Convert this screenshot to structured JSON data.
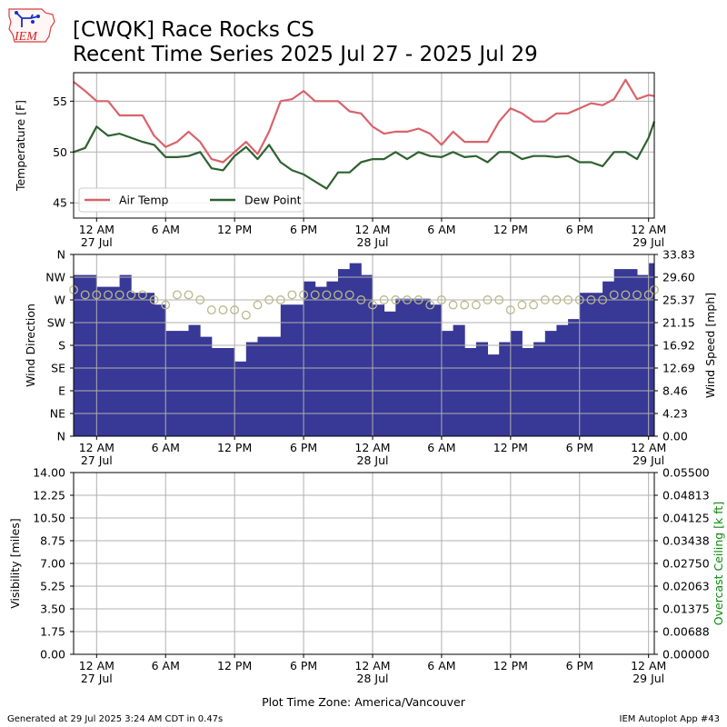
{
  "header": {
    "logo_text": "IEM",
    "title_line1": "[CWQK] Race Rocks CS",
    "title_line2": "Recent Time Series 2025 Jul 27 - 2025 Jul 29"
  },
  "footer": {
    "generated": "Generated at 29 Jul 2025 3:24 AM CDT in 0.47s",
    "timezone": "Plot Time Zone: America/Vancouver",
    "app": "IEM Autoplot App #43"
  },
  "colors": {
    "air_temp": "#d9626a",
    "dew_point": "#2e6130",
    "wind_speed": "#383896",
    "wind_dir": "#b8b98a",
    "ceiling_label": "#0a8a0a",
    "grid": "#b0b0b0"
  },
  "chart_data": [
    {
      "type": "line",
      "ylabel": "Temperature [F]",
      "ylim": [
        43.5,
        57.8
      ],
      "xlim": [
        0,
        50.5
      ],
      "yticks": [
        45,
        50,
        55
      ],
      "grid": true,
      "legend_placement": "lower-left",
      "x_ticks": [
        {
          "x": 2,
          "line1": "12 AM",
          "line2": "27 Jul"
        },
        {
          "x": 8,
          "line1": "6 AM",
          "line2": ""
        },
        {
          "x": 14,
          "line1": "12 PM",
          "line2": ""
        },
        {
          "x": 20,
          "line1": "6 PM",
          "line2": ""
        },
        {
          "x": 26,
          "line1": "12 AM",
          "line2": "28 Jul"
        },
        {
          "x": 32,
          "line1": "6 AM",
          "line2": ""
        },
        {
          "x": 38,
          "line1": "12 PM",
          "line2": ""
        },
        {
          "x": 44,
          "line1": "6 PM",
          "line2": ""
        },
        {
          "x": 50,
          "line1": "12 AM",
          "line2": "29 Jul"
        }
      ],
      "series": [
        {
          "name": "Air Temp",
          "key": "air_temp",
          "x": [
            0,
            1,
            2,
            3,
            4,
            5,
            6,
            7,
            8,
            9,
            10,
            11,
            12,
            13,
            14,
            15,
            16,
            17,
            18,
            19,
            20,
            21,
            22,
            23,
            24,
            25,
            26,
            27,
            28,
            29,
            30,
            31,
            32,
            33,
            34,
            35,
            36,
            37,
            38,
            39,
            40,
            41,
            42,
            43,
            44,
            45,
            46,
            47,
            48,
            49,
            50,
            50.5
          ],
          "values": [
            56.9,
            56.0,
            55.0,
            55.0,
            53.6,
            53.6,
            53.6,
            51.6,
            50.5,
            51.0,
            52.0,
            51.0,
            49.3,
            49.0,
            50.0,
            51.0,
            49.8,
            52.0,
            55.0,
            55.2,
            56.0,
            55.0,
            55.0,
            55.0,
            54.0,
            53.8,
            52.5,
            51.8,
            52.0,
            52.0,
            52.3,
            51.8,
            50.7,
            52.0,
            51.0,
            51.0,
            51.0,
            53.0,
            54.3,
            53.8,
            53.0,
            53.0,
            53.8,
            53.8,
            54.3,
            54.8,
            54.6,
            55.2,
            57.1,
            55.2,
            55.6,
            55.5
          ]
        },
        {
          "name": "Dew Point",
          "key": "dew_point",
          "x": [
            0,
            1,
            2,
            3,
            4,
            5,
            6,
            7,
            8,
            9,
            10,
            11,
            12,
            13,
            14,
            15,
            16,
            17,
            18,
            19,
            20,
            21,
            22,
            23,
            24,
            25,
            26,
            27,
            28,
            29,
            30,
            31,
            32,
            33,
            34,
            35,
            36,
            37,
            38,
            39,
            40,
            41,
            42,
            43,
            44,
            45,
            46,
            47,
            48,
            49,
            50,
            50.5
          ],
          "values": [
            50.0,
            50.4,
            52.5,
            51.6,
            51.8,
            51.4,
            51.0,
            50.7,
            49.5,
            49.5,
            49.6,
            50.0,
            48.4,
            48.2,
            49.6,
            50.5,
            49.3,
            50.7,
            49.0,
            48.2,
            47.8,
            47.1,
            46.4,
            48.0,
            48.0,
            49.0,
            49.3,
            49.3,
            50.0,
            49.3,
            50.0,
            49.6,
            49.5,
            50.0,
            49.5,
            49.6,
            49.0,
            50.0,
            50.0,
            49.3,
            49.6,
            49.6,
            49.5,
            49.6,
            49.0,
            49.0,
            48.6,
            50.0,
            50.0,
            49.3,
            51.4,
            53.0
          ]
        }
      ]
    },
    {
      "type": "bar",
      "ylabel": "Wind Direction",
      "y2label": "Wind Speed [mph]",
      "dir_ticks": [
        "N",
        "NE",
        "E",
        "SE",
        "S",
        "SW",
        "W",
        "NW",
        "N"
      ],
      "dir_ylim": [
        0,
        360
      ],
      "speed_ticks": [
        "0.00",
        "4.23",
        "8.46",
        "12.69",
        "16.92",
        "21.15",
        "25.37",
        "29.60",
        "33.83"
      ],
      "speed_ylim": [
        0,
        33.83
      ],
      "xlim": [
        0,
        50.5
      ],
      "grid": true,
      "series": [
        {
          "name": "Wind Speed",
          "key": "wind_speed",
          "x": [
            0,
            1,
            2,
            3,
            4,
            5,
            6,
            7,
            8,
            9,
            10,
            11,
            12,
            13,
            14,
            15,
            16,
            17,
            18,
            19,
            20,
            21,
            22,
            23,
            24,
            25,
            26,
            27,
            28,
            29,
            30,
            31,
            32,
            33,
            34,
            35,
            36,
            37,
            38,
            39,
            40,
            41,
            42,
            43,
            44,
            45,
            46,
            47,
            48,
            49,
            50,
            50.5
          ],
          "values": [
            30.0,
            30.0,
            27.8,
            27.8,
            30.0,
            26.7,
            26.7,
            24.5,
            19.6,
            19.6,
            20.7,
            18.5,
            16.4,
            16.4,
            13.9,
            17.5,
            18.5,
            18.5,
            24.5,
            24.5,
            28.8,
            27.8,
            28.8,
            31.1,
            32.2,
            30.0,
            24.5,
            23.2,
            25.6,
            25.6,
            25.6,
            24.5,
            19.6,
            20.7,
            16.4,
            17.5,
            15.2,
            17.5,
            19.6,
            16.4,
            17.5,
            19.6,
            20.7,
            21.8,
            26.7,
            26.7,
            28.8,
            31.1,
            31.1,
            30.0,
            32.2,
            30.0
          ]
        },
        {
          "name": "Wind Direction",
          "key": "wind_dir",
          "x": [
            0,
            1,
            2,
            3,
            4,
            5,
            6,
            7,
            8,
            9,
            10,
            11,
            12,
            13,
            14,
            15,
            16,
            17,
            18,
            19,
            20,
            21,
            22,
            23,
            24,
            25,
            26,
            27,
            28,
            29,
            30,
            31,
            32,
            33,
            34,
            35,
            36,
            37,
            38,
            39,
            40,
            41,
            42,
            43,
            44,
            45,
            46,
            47,
            48,
            49,
            50,
            50.5
          ],
          "values": [
            290,
            280,
            280,
            280,
            280,
            280,
            280,
            270,
            260,
            280,
            280,
            270,
            250,
            250,
            250,
            240,
            260,
            270,
            270,
            280,
            280,
            280,
            280,
            280,
            280,
            270,
            260,
            270,
            270,
            270,
            270,
            260,
            270,
            260,
            260,
            260,
            270,
            270,
            250,
            260,
            260,
            270,
            270,
            270,
            270,
            270,
            270,
            280,
            280,
            280,
            280,
            290
          ]
        }
      ]
    },
    {
      "type": "line",
      "ylabel": "Visibility [miles]",
      "y2label": "Overcast Ceiling [k ft]",
      "vis_ticks": [
        "0.00",
        "1.75",
        "3.50",
        "5.25",
        "7.00",
        "8.75",
        "10.50",
        "12.25",
        "14.00"
      ],
      "vis_ylim": [
        0,
        14
      ],
      "ceiling_ticks": [
        "0.00000",
        "0.00688",
        "0.01375",
        "0.02063",
        "0.02750",
        "0.03438",
        "0.04125",
        "0.04813",
        "0.05500"
      ],
      "ceiling_ylim": [
        0,
        0.055
      ],
      "xlim": [
        0,
        50.5
      ],
      "grid": true,
      "series": []
    }
  ]
}
